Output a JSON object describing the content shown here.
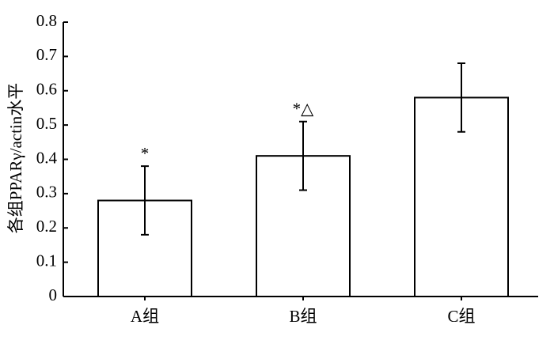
{
  "chart_data": {
    "type": "bar",
    "y_label": "各组PPARγ/actin水平",
    "categories": [
      "A组",
      "B组",
      "C组"
    ],
    "values": [
      0.28,
      0.41,
      0.58
    ],
    "errors": [
      0.1,
      0.1,
      0.1
    ],
    "annotations": [
      "*",
      "*△",
      null
    ],
    "color": "#ffffff",
    "ylim": [
      0,
      0.8
    ],
    "yticks": [
      0,
      0.1,
      0.2,
      0.3,
      0.4,
      0.5,
      0.6,
      0.7,
      0.8
    ]
  }
}
